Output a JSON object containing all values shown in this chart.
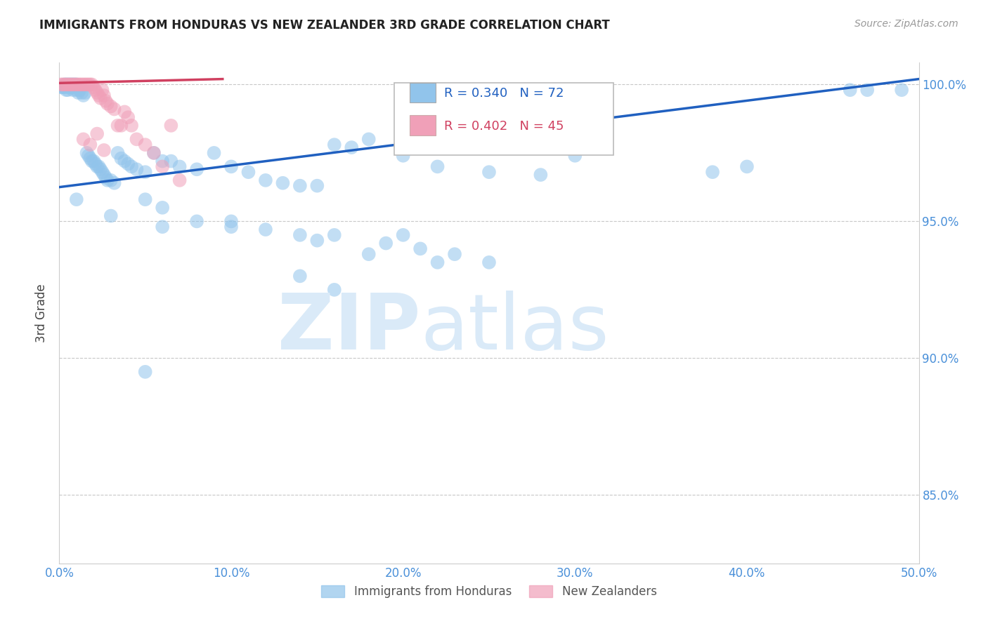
{
  "title": "IMMIGRANTS FROM HONDURAS VS NEW ZEALANDER 3RD GRADE CORRELATION CHART",
  "source": "Source: ZipAtlas.com",
  "ylabel": "3rd Grade",
  "xlim": [
    0.0,
    0.5
  ],
  "ylim": [
    0.825,
    1.008
  ],
  "xticks": [
    0.0,
    0.1,
    0.2,
    0.3,
    0.4,
    0.5
  ],
  "xticklabels": [
    "0.0%",
    "10.0%",
    "20.0%",
    "30.0%",
    "40.0%",
    "50.0%"
  ],
  "yticks": [
    0.85,
    0.9,
    0.95,
    1.0
  ],
  "yticklabels": [
    "85.0%",
    "90.0%",
    "95.0%",
    "100.0%"
  ],
  "ytick_color": "#4a90d9",
  "xtick_color": "#4a90d9",
  "grid_color": "#c8c8c8",
  "legend_R1": "R = 0.340",
  "legend_N1": "N = 72",
  "legend_R2": "R = 0.402",
  "legend_N2": "N = 45",
  "blue_color": "#91c4eb",
  "pink_color": "#f0a0b8",
  "blue_line_color": "#2060c0",
  "pink_line_color": "#d04060",
  "blue_scatter_x": [
    0.001,
    0.002,
    0.003,
    0.003,
    0.004,
    0.004,
    0.005,
    0.005,
    0.005,
    0.006,
    0.006,
    0.007,
    0.007,
    0.008,
    0.008,
    0.009,
    0.009,
    0.01,
    0.01,
    0.011,
    0.012,
    0.013,
    0.014,
    0.015,
    0.016,
    0.017,
    0.018,
    0.019,
    0.02,
    0.021,
    0.022,
    0.023,
    0.024,
    0.025,
    0.026,
    0.027,
    0.028,
    0.03,
    0.032,
    0.034,
    0.036,
    0.038,
    0.04,
    0.042,
    0.045,
    0.05,
    0.055,
    0.06,
    0.065,
    0.07,
    0.08,
    0.09,
    0.1,
    0.11,
    0.12,
    0.13,
    0.14,
    0.15,
    0.16,
    0.17,
    0.18,
    0.2,
    0.22,
    0.25,
    0.28,
    0.3,
    0.38,
    0.4,
    0.46,
    0.47,
    0.49
  ],
  "blue_scatter_y": [
    0.999,
    0.999,
    1.0,
    0.999,
    1.0,
    0.998,
    1.0,
    0.999,
    0.998,
    1.0,
    0.999,
    1.0,
    0.999,
    1.0,
    0.998,
    1.0,
    0.999,
    1.0,
    0.998,
    0.997,
    0.998,
    0.997,
    0.996,
    0.997,
    0.975,
    0.974,
    0.973,
    0.972,
    0.972,
    0.971,
    0.97,
    0.97,
    0.969,
    0.968,
    0.967,
    0.966,
    0.965,
    0.965,
    0.964,
    0.975,
    0.973,
    0.972,
    0.971,
    0.97,
    0.969,
    0.968,
    0.975,
    0.972,
    0.972,
    0.97,
    0.969,
    0.975,
    0.97,
    0.968,
    0.965,
    0.964,
    0.963,
    0.963,
    0.978,
    0.977,
    0.98,
    0.974,
    0.97,
    0.968,
    0.967,
    0.974,
    0.968,
    0.97,
    0.998,
    0.998,
    0.998
  ],
  "blue_extra_x": [
    0.01,
    0.06,
    0.1,
    0.15,
    0.2,
    0.18,
    0.22,
    0.05
  ],
  "blue_extra_y": [
    0.958,
    0.948,
    0.948,
    0.943,
    0.945,
    0.938,
    0.935,
    0.895
  ],
  "blue_low_x": [
    0.03,
    0.05,
    0.06,
    0.08,
    0.1,
    0.12,
    0.14,
    0.16,
    0.19,
    0.21,
    0.23,
    0.25,
    0.14,
    0.16
  ],
  "blue_low_y": [
    0.952,
    0.958,
    0.955,
    0.95,
    0.95,
    0.947,
    0.945,
    0.945,
    0.942,
    0.94,
    0.938,
    0.935,
    0.93,
    0.925
  ],
  "pink_scatter_x": [
    0.001,
    0.002,
    0.003,
    0.004,
    0.005,
    0.006,
    0.007,
    0.008,
    0.009,
    0.01,
    0.011,
    0.012,
    0.013,
    0.014,
    0.015,
    0.016,
    0.017,
    0.018,
    0.019,
    0.02,
    0.021,
    0.022,
    0.023,
    0.024,
    0.025,
    0.026,
    0.027,
    0.028,
    0.03,
    0.032,
    0.034,
    0.036,
    0.038,
    0.04,
    0.042,
    0.045,
    0.05,
    0.055,
    0.06,
    0.065,
    0.07,
    0.014,
    0.018,
    0.022,
    0.026
  ],
  "pink_scatter_y": [
    1.0,
    1.0,
    1.0,
    1.0,
    1.0,
    1.0,
    1.0,
    1.0,
    1.0,
    1.0,
    1.0,
    1.0,
    1.0,
    1.0,
    1.0,
    1.0,
    1.0,
    1.0,
    1.0,
    0.999,
    0.998,
    0.997,
    0.996,
    0.995,
    0.998,
    0.996,
    0.994,
    0.993,
    0.992,
    0.991,
    0.985,
    0.985,
    0.99,
    0.988,
    0.985,
    0.98,
    0.978,
    0.975,
    0.97,
    0.985,
    0.965,
    0.98,
    0.978,
    0.982,
    0.976
  ],
  "blue_trendline_x": [
    0.0,
    0.5
  ],
  "blue_trendline_y": [
    0.9625,
    1.002
  ],
  "pink_trendline_x": [
    -0.002,
    0.095
  ],
  "pink_trendline_y": [
    1.0005,
    1.002
  ]
}
